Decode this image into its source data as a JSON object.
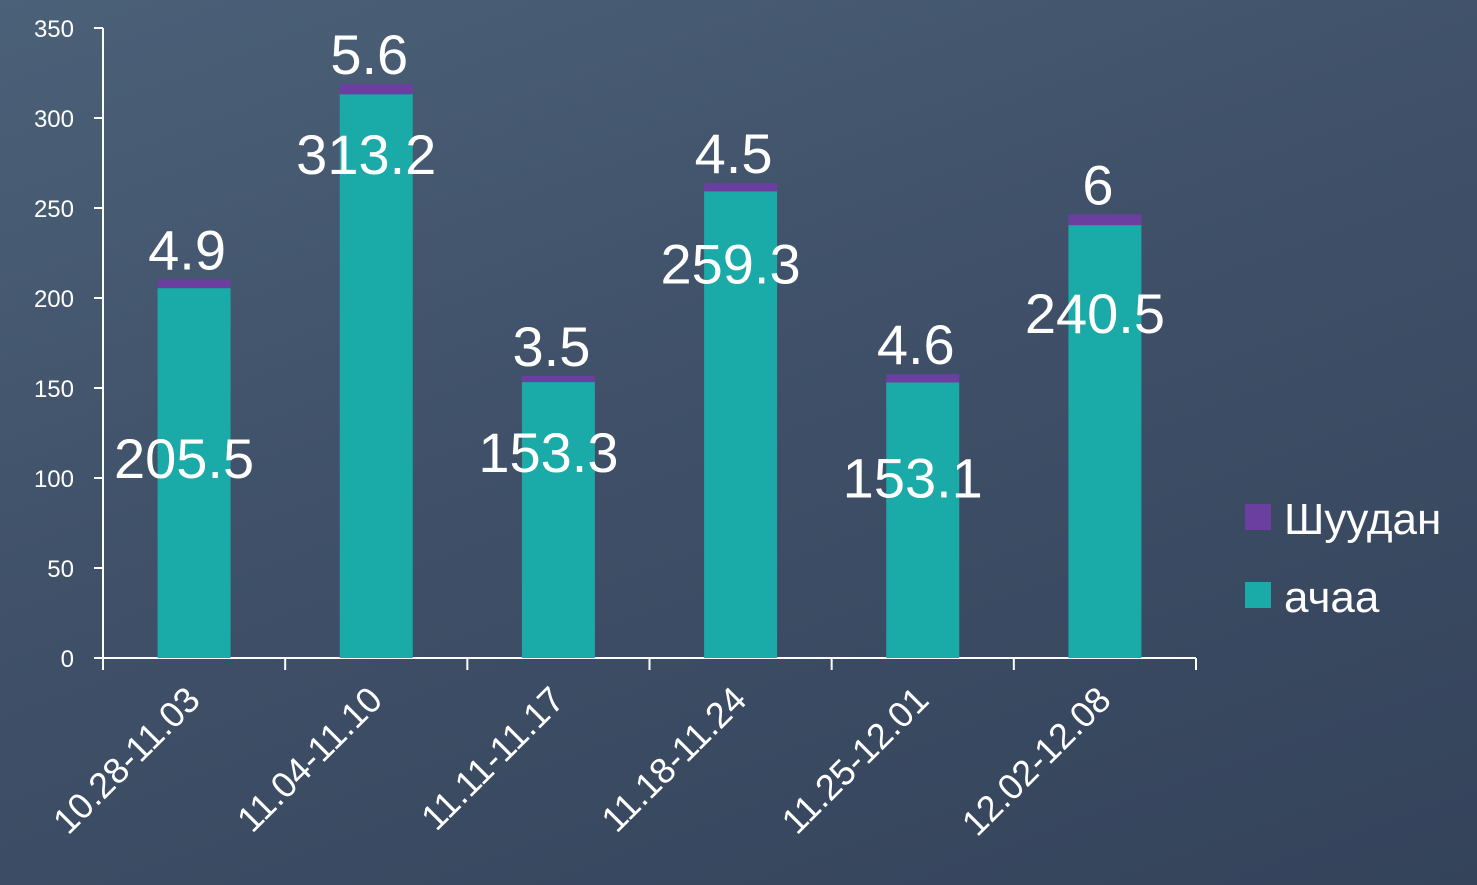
{
  "chart_data": {
    "type": "bar",
    "stacked": true,
    "categories": [
      "10.28-11.03",
      "11.04-11.10",
      "11.11-11.17",
      "11.18-11.24",
      "11.25-12.01",
      "12.02-12.08"
    ],
    "series": [
      {
        "name": "ачаа",
        "color": "#1aaaa8",
        "values": [
          205.5,
          313.2,
          153.3,
          259.3,
          153.1,
          240.5
        ]
      },
      {
        "name": "Шуудан",
        "color": "#6b3fa0",
        "values": [
          4.9,
          5.6,
          3.5,
          4.5,
          4.6,
          6
        ]
      }
    ],
    "ylim": [
      0,
      350
    ],
    "yticks": [
      0,
      50,
      100,
      150,
      200,
      250,
      300,
      350
    ],
    "legend_position": "right",
    "grid": false
  }
}
